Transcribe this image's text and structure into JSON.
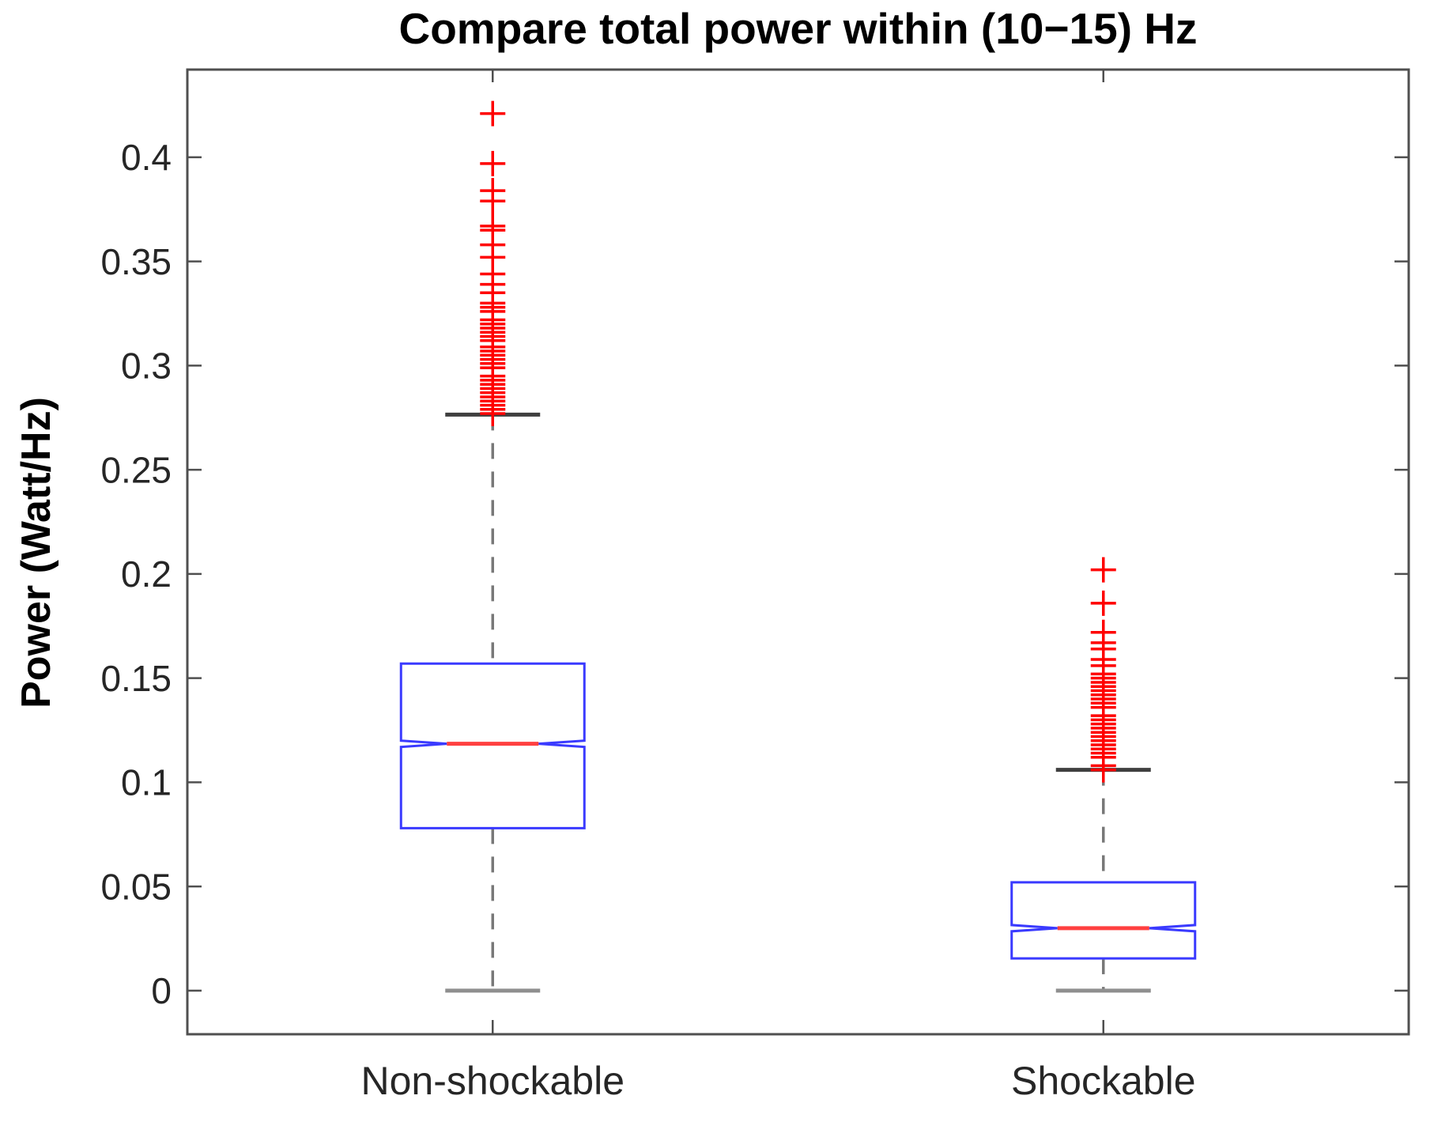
{
  "chart_data": {
    "type": "boxplot",
    "title": "Compare total power within (10−15) Hz",
    "ylabel": "Power (Watt/Hz)",
    "categories": [
      "Non-shockable",
      "Shockable"
    ],
    "positions": [
      1,
      2
    ],
    "xlim": [
      0.5,
      2.5
    ],
    "ylim": [
      -0.0209,
      0.4421
    ],
    "yticks": [
      0,
      0.05,
      0.1,
      0.15,
      0.2,
      0.25,
      0.3,
      0.35,
      0.4
    ],
    "ytick_labels": [
      "0",
      "0.05",
      "0.1",
      "0.15",
      "0.2",
      "0.25",
      "0.3",
      "0.35",
      "0.4"
    ],
    "grid": false,
    "notched": true,
    "outlier_marker": "+",
    "series": [
      {
        "name": "Non-shockable",
        "whisker_low": 0.0,
        "q1": 0.078,
        "median": 0.1185,
        "q3": 0.157,
        "whisker_high": 0.2765,
        "outliers": [
          0.277,
          0.279,
          0.281,
          0.283,
          0.285,
          0.287,
          0.289,
          0.291,
          0.293,
          0.295,
          0.299,
          0.301,
          0.303,
          0.305,
          0.307,
          0.309,
          0.312,
          0.314,
          0.316,
          0.318,
          0.32,
          0.322,
          0.326,
          0.328,
          0.33,
          0.335,
          0.339,
          0.344,
          0.352,
          0.358,
          0.365,
          0.367,
          0.379,
          0.384,
          0.397,
          0.421
        ]
      },
      {
        "name": "Shockable",
        "whisker_low": 0.0,
        "q1": 0.0155,
        "median": 0.03,
        "q3": 0.052,
        "whisker_high": 0.106,
        "outliers": [
          0.106,
          0.108,
          0.112,
          0.114,
          0.116,
          0.118,
          0.12,
          0.122,
          0.124,
          0.126,
          0.128,
          0.13,
          0.132,
          0.136,
          0.138,
          0.14,
          0.142,
          0.144,
          0.146,
          0.148,
          0.15,
          0.152,
          0.156,
          0.159,
          0.164,
          0.167,
          0.172,
          0.186,
          0.202
        ]
      }
    ],
    "colors": {
      "box": "#3a3aff",
      "median": "#ff4040",
      "outlier": "#ff0000",
      "whisker": "#787878",
      "cap_upper": "#3f3f3f",
      "cap_lower": "#8f8f8f",
      "frame": "#4f4f4f",
      "tick_label": "#262626"
    }
  }
}
